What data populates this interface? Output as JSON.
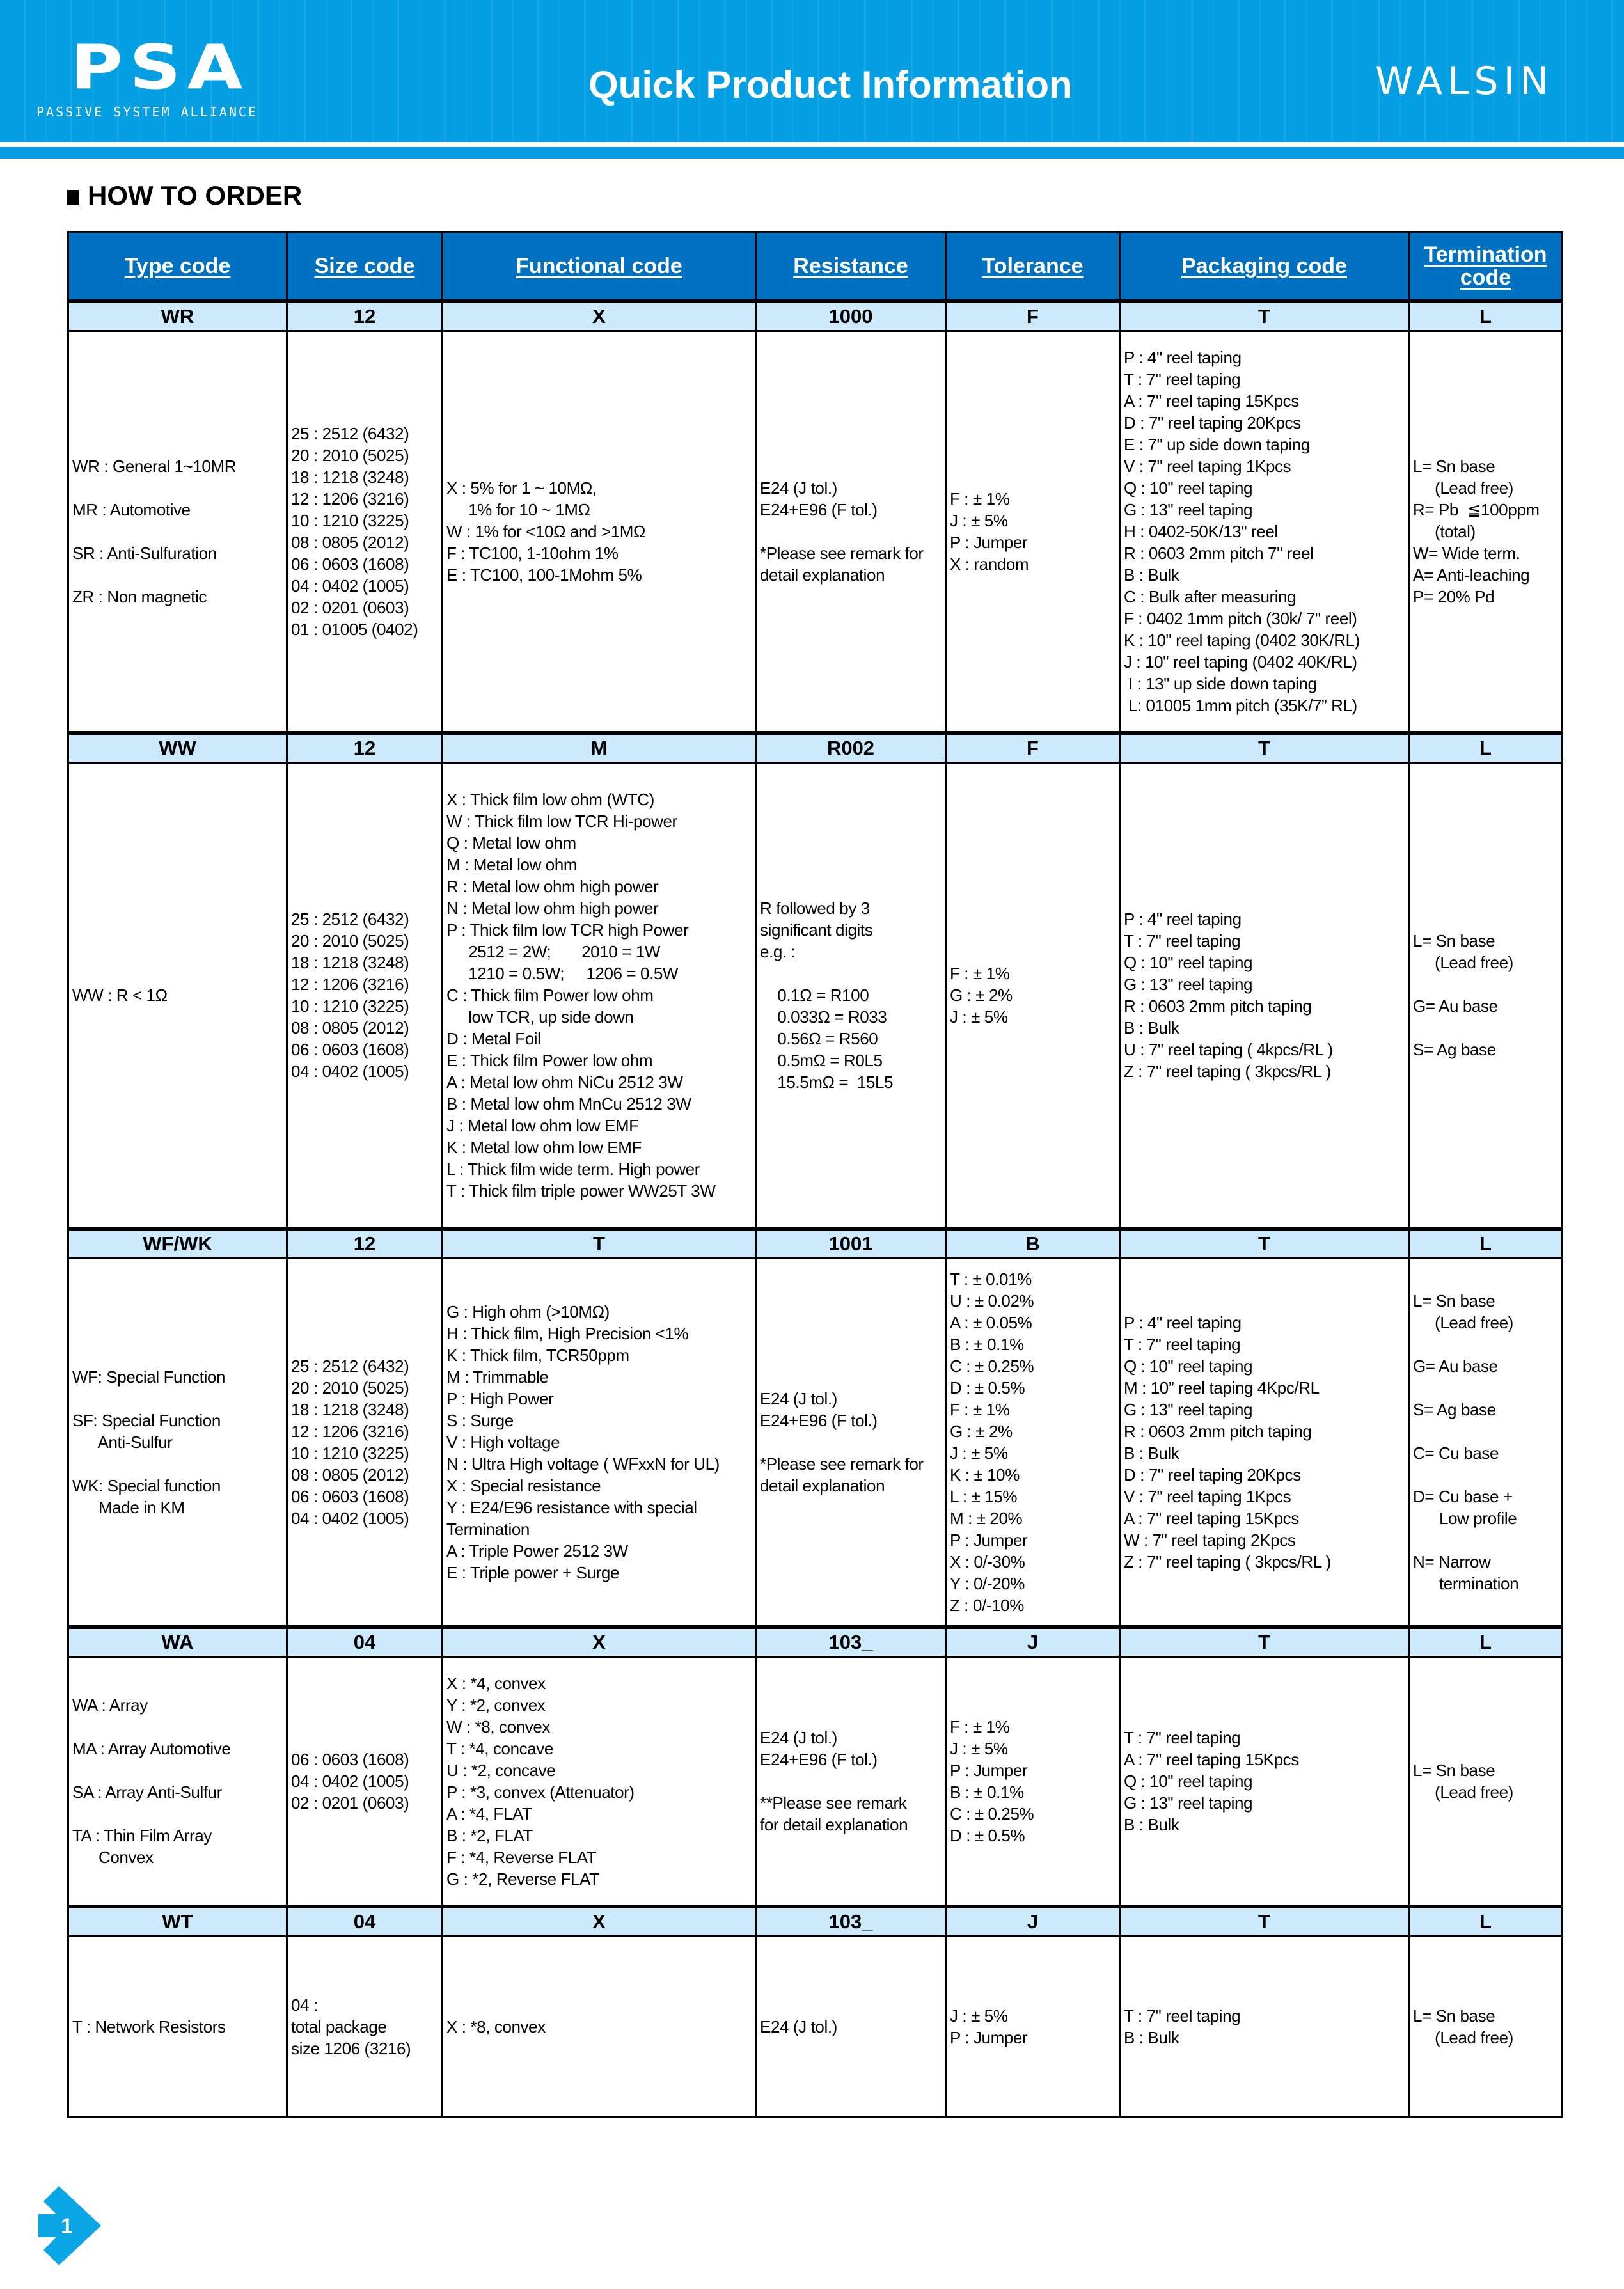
{
  "header": {
    "logo_text": "PSA",
    "logo_tagline": "PASSIVE SYSTEM ALLIANCE",
    "title": "Quick Product Information",
    "brand": "WALSIN",
    "color": "#049FE3"
  },
  "section_title": "HOW TO ORDER",
  "columns": [
    "Type code",
    "Size code",
    "Functional code",
    "Resistance",
    "Tolerance",
    "Packaging code",
    "Termination code"
  ],
  "colors": {
    "header_bg": "#0070C0",
    "code_row_bg": "#CCEAFB"
  },
  "sections": [
    {
      "codes": [
        "WR",
        "12",
        "X",
        "1000",
        "F",
        "T",
        "L"
      ],
      "cells": [
        [
          "WR : General 1~10MR",
          "",
          "MR : Automotive",
          "",
          "SR : Anti-Sulfuration",
          "",
          "ZR : Non magnetic"
        ],
        [
          "25 : 2512 (6432)",
          "20 : 2010 (5025)",
          "18 : 1218 (3248)",
          "12 : 1206 (3216)",
          "10 : 1210 (3225)",
          "08 : 0805 (2012)",
          "06 : 0603 (1608)",
          "04 : 0402 (1005)",
          "02 : 0201 (0603)",
          "01 : 01005 (0402)"
        ],
        [
          "X : 5% for 1 ~ 10MΩ,",
          "     1% for 10 ~ 1MΩ",
          "W : 1% for <10Ω and >1MΩ",
          "F : TC100, 1-10ohm 1%",
          "E : TC100, 100-1Mohm 5%"
        ],
        [
          "E24 (J tol.)",
          "E24+E96 (F tol.)",
          "",
          "*Please see remark for",
          "detail explanation"
        ],
        [
          "F : ± 1%",
          "J : ± 5%",
          "P : Jumper",
          "X : random"
        ],
        [
          "P : 4\" reel taping",
          "T : 7\" reel taping",
          "A : 7\" reel taping 15Kpcs",
          "D : 7\" reel taping 20Kpcs",
          "E : 7\" up side down taping",
          "V : 7\" reel taping 1Kpcs",
          "Q : 10\" reel taping",
          "G : 13\" reel taping",
          "H : 0402-50K/13\" reel",
          "R : 0603 2mm pitch 7\" reel",
          "B : Bulk",
          "C : Bulk after measuring",
          "F : 0402 1mm pitch (30k/ 7\" reel)",
          "K : 10\" reel taping (0402 30K/RL)",
          "J : 10\" reel taping (0402 40K/RL)",
          " I : 13\" up side down taping",
          " L: 01005 1mm pitch (35K/7” RL)"
        ],
        [
          "L= Sn base",
          "     (Lead free)",
          "R= Pb  ≦100ppm",
          "     (total)",
          "W= Wide term.",
          "A= Anti-leaching",
          "P= 20% Pd"
        ]
      ]
    },
    {
      "codes": [
        "WW",
        "12",
        "M",
        "R002",
        "F",
        "T",
        "L"
      ],
      "cells": [
        [
          "WW : R < 1Ω"
        ],
        [
          "25 : 2512 (6432)",
          "20 : 2010 (5025)",
          "18 : 1218 (3248)",
          "12 : 1206 (3216)",
          "10 : 1210 (3225)",
          "08 : 0805 (2012)",
          "06 : 0603 (1608)",
          "04 : 0402 (1005)"
        ],
        [
          "X : Thick film low ohm (WTC)",
          "W : Thick film low TCR Hi-power",
          "Q : Metal low ohm",
          "M : Metal low ohm",
          "R : Metal low ohm high power",
          "N : Metal low ohm high power",
          "P : Thick film low TCR high Power",
          "     2512 = 2W;       2010 = 1W",
          "     1210 = 0.5W;     1206 = 0.5W",
          "C : Thick film Power low ohm",
          "     low TCR, up side down",
          "D : Metal Foil",
          "E : Thick film Power low ohm",
          "A : Metal low ohm NiCu 2512 3W",
          "B : Metal low ohm MnCu 2512 3W",
          "J : Metal low ohm low EMF",
          "K : Metal low ohm low EMF",
          "L : Thick film wide term. High power",
          "T : Thick film triple power WW25T 3W"
        ],
        [
          "R followed by 3",
          "significant digits",
          "e.g. :",
          "",
          "    0.1Ω = R100",
          "    0.033Ω = R033",
          "    0.56Ω = R560",
          "    0.5mΩ = R0L5",
          "    15.5mΩ =  15L5"
        ],
        [
          "F : ± 1%",
          "G : ± 2%",
          "J : ± 5%"
        ],
        [
          "P : 4\" reel taping",
          "T : 7\" reel taping",
          "Q : 10\" reel taping",
          "G : 13\" reel taping",
          "R : 0603 2mm pitch taping",
          "B : Bulk",
          "U : 7\" reel taping ( 4kpcs/RL )",
          "Z : 7\" reel taping ( 3kpcs/RL )"
        ],
        [
          "L= Sn base",
          "     (Lead free)",
          "",
          "G= Au base",
          "",
          "S= Ag base"
        ]
      ]
    },
    {
      "codes": [
        "WF/WK",
        "12",
        "T",
        "1001",
        "B",
        "T",
        "L"
      ],
      "cells": [
        [
          "WF: Special Function",
          "",
          "SF: Special Function",
          "      Anti-Sulfur",
          "",
          "WK: Special function",
          "      Made in KM"
        ],
        [
          "25 : 2512 (6432)",
          "20 : 2010 (5025)",
          "18 : 1218 (3248)",
          "12 : 1206 (3216)",
          "10 : 1210 (3225)",
          "08 : 0805 (2012)",
          "06 : 0603 (1608)",
          "04 : 0402 (1005)"
        ],
        [
          "G : High ohm (>10MΩ)",
          "H : Thick film, High Precision <1%",
          "K : Thick film, TCR50ppm",
          "M : Trimmable",
          "P : High Power",
          "S : Surge",
          "V : High voltage",
          "N : Ultra High voltage ( WFxxN for UL)",
          "X : Special resistance",
          "Y : E24/E96 resistance with special",
          "Termination",
          "A : Triple Power 2512 3W",
          "E : Triple power + Surge"
        ],
        [
          "E24 (J tol.)",
          "E24+E96 (F tol.)",
          "",
          "*Please see remark for",
          "detail explanation"
        ],
        [
          "T : ± 0.01%",
          "U : ± 0.02%",
          "A : ± 0.05%",
          "B : ± 0.1%",
          "C : ± 0.25%",
          "D : ± 0.5%",
          "F : ± 1%",
          "G : ± 2%",
          "J : ± 5%",
          "K : ± 10%",
          "L : ± 15%",
          "M : ± 20%",
          "P : Jumper",
          "X : 0/-30%",
          "Y : 0/-20%",
          "Z : 0/-10%"
        ],
        [
          "P : 4\" reel taping",
          "T : 7\" reel taping",
          "Q : 10\" reel taping",
          "M : 10” reel taping 4Kpc/RL",
          "G : 13\" reel taping",
          "R : 0603 2mm pitch taping",
          "B : Bulk",
          "D : 7\" reel taping 20Kpcs",
          "V : 7\" reel taping 1Kpcs",
          "A : 7\" reel taping 15Kpcs",
          "W : 7\" reel taping 2Kpcs",
          "Z : 7\" reel taping ( 3kpcs/RL )"
        ],
        [
          "L= Sn base",
          "     (Lead free)",
          "",
          "G= Au base",
          "",
          "S= Ag base",
          "",
          "C= Cu base",
          "",
          "D= Cu base +",
          "      Low profile",
          "",
          "N= Narrow",
          "      termination"
        ]
      ]
    },
    {
      "codes": [
        "WA",
        "04",
        "X",
        "103_",
        "J",
        "T",
        "L"
      ],
      "cells": [
        [
          "WA : Array",
          "",
          "MA : Array Automotive",
          "",
          "SA : Array Anti-Sulfur",
          "",
          "TA : Thin Film Array",
          "      Convex"
        ],
        [
          "06 : 0603 (1608)",
          "04 : 0402 (1005)",
          "02 : 0201 (0603)"
        ],
        [
          "X : *4, convex",
          "Y : *2, convex",
          "W : *8, convex",
          "T : *4, concave",
          "U : *2, concave",
          "P : *3, convex (Attenuator)",
          "A : *4, FLAT",
          "B : *2, FLAT",
          "F : *4, Reverse FLAT",
          "G : *2, Reverse FLAT"
        ],
        [
          "E24 (J tol.)",
          "E24+E96 (F tol.)",
          "",
          "**Please see remark",
          "for detail explanation"
        ],
        [
          "F : ± 1%",
          "J : ± 5%",
          "P : Jumper",
          "B : ± 0.1%",
          "C : ± 0.25%",
          "D : ± 0.5%"
        ],
        [
          "T : 7\" reel taping",
          "A : 7\" reel taping 15Kpcs",
          "Q : 10\" reel taping",
          "G : 13\" reel taping",
          "B : Bulk"
        ],
        [
          "L= Sn base",
          "     (Lead free)"
        ]
      ]
    },
    {
      "codes": [
        "WT",
        "04",
        "X",
        "103_",
        "J",
        "T",
        "L"
      ],
      "cells": [
        [
          "T : Network Resistors"
        ],
        [
          "04 :",
          "total package",
          "size 1206 (3216)"
        ],
        [
          "X : *8, convex"
        ],
        [
          "E24 (J tol.)"
        ],
        [
          "J : ± 5%",
          "P : Jumper"
        ],
        [
          "T : 7\" reel taping",
          "B : Bulk"
        ],
        [
          "L= Sn base",
          "     (Lead free)"
        ]
      ]
    }
  ],
  "page_number": "1"
}
